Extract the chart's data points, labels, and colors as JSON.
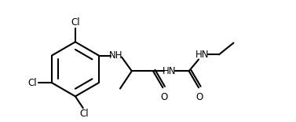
{
  "background": "#ffffff",
  "bond_color": "#000000",
  "text_color": "#000000",
  "bond_lw": 1.5,
  "font_size": 8.5,
  "figsize": [
    3.77,
    1.55
  ],
  "dpi": 100,
  "xlim": [
    0.0,
    13.5
  ],
  "ylim": [
    -2.5,
    3.5
  ]
}
